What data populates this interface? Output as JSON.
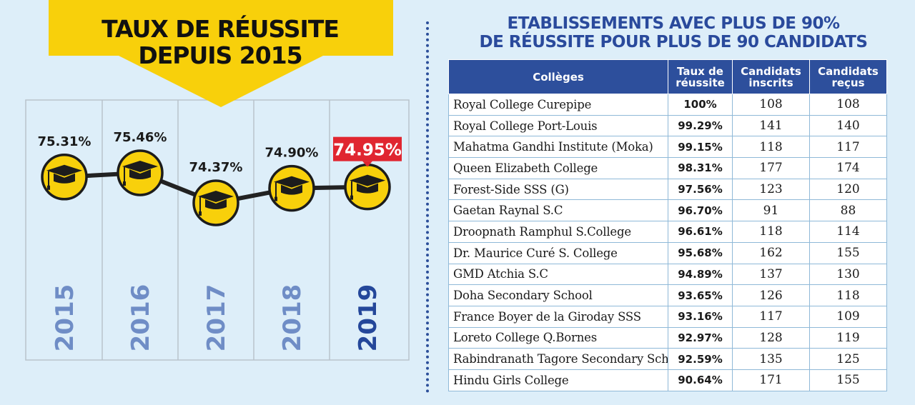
{
  "left": {
    "title_line1": "TAUX DE RÉUSSITE",
    "title_line2": "DEPUIS 2015"
  },
  "chart_data": {
    "type": "line",
    "title": "TAUX DE RÉUSSITE DEPUIS 2015",
    "x": [
      "2015",
      "2016",
      "2017",
      "2018",
      "2019"
    ],
    "values": [
      75.31,
      75.46,
      74.37,
      74.9,
      74.95
    ],
    "labels": [
      "75.31%",
      "75.46%",
      "74.37%",
      "74.90%",
      "74.95%"
    ],
    "highlight_index": 4,
    "icon": "graduation-cap-icon"
  },
  "colors": {
    "background": "#ddeef9",
    "banner": "#f8d00b",
    "header_blue": "#2d4f9c",
    "highlight_red": "#e02630",
    "year_light": "#6f8dc6",
    "year_dark": "#24479a"
  },
  "right": {
    "title_line1": "ETABLISSEMENTS AVEC PLUS DE 90%",
    "title_line2": "DE RÉUSSITE POUR PLUS DE 90 CANDIDATS"
  },
  "table": {
    "headers": {
      "col1": "Collèges",
      "col2_line1": "Taux de",
      "col2_line2": "réussite",
      "col3_line1": "Candidats",
      "col3_line2": "inscrits",
      "col4_line1": "Candidats",
      "col4_line2": "reçus"
    },
    "rows": [
      {
        "name": "Royal College Curepipe",
        "rate": "100%",
        "enrolled": "108",
        "passed": "108"
      },
      {
        "name": "Royal College Port-Louis",
        "rate": "99.29%",
        "enrolled": "141",
        "passed": "140"
      },
      {
        "name": "Mahatma Gandhi Institute (Moka)",
        "rate": "99.15%",
        "enrolled": "118",
        "passed": "117"
      },
      {
        "name": "Queen Elizabeth College",
        "rate": "98.31%",
        "enrolled": "177",
        "passed": "174"
      },
      {
        "name": "Forest-Side SSS (G)",
        "rate": "97.56%",
        "enrolled": "123",
        "passed": "120"
      },
      {
        "name": "Gaetan Raynal S.C",
        "rate": "96.70%",
        "enrolled": "91",
        "passed": "88"
      },
      {
        "name": "Droopnath Ramphul S.College",
        "rate": "96.61%",
        "enrolled": "118",
        "passed": "114"
      },
      {
        "name": "Dr. Maurice Curé S. College",
        "rate": "95.68%",
        "enrolled": "162",
        "passed": "155"
      },
      {
        "name": "GMD Atchia S.C",
        "rate": "94.89%",
        "enrolled": "137",
        "passed": "130"
      },
      {
        "name": "Doha Secondary School",
        "rate": "93.65%",
        "enrolled": "126",
        "passed": "118"
      },
      {
        "name": "France Boyer de la Giroday SSS",
        "rate": "93.16%",
        "enrolled": "117",
        "passed": "109"
      },
      {
        "name": "Loreto College Q.Bornes",
        "rate": "92.97%",
        "enrolled": "128",
        "passed": "119"
      },
      {
        "name": "Rabindranath Tagore Secondary School",
        "rate": "92.59%",
        "enrolled": "135",
        "passed": "125"
      },
      {
        "name": "Hindu Girls College",
        "rate": "90.64%",
        "enrolled": "171",
        "passed": "155"
      }
    ]
  }
}
